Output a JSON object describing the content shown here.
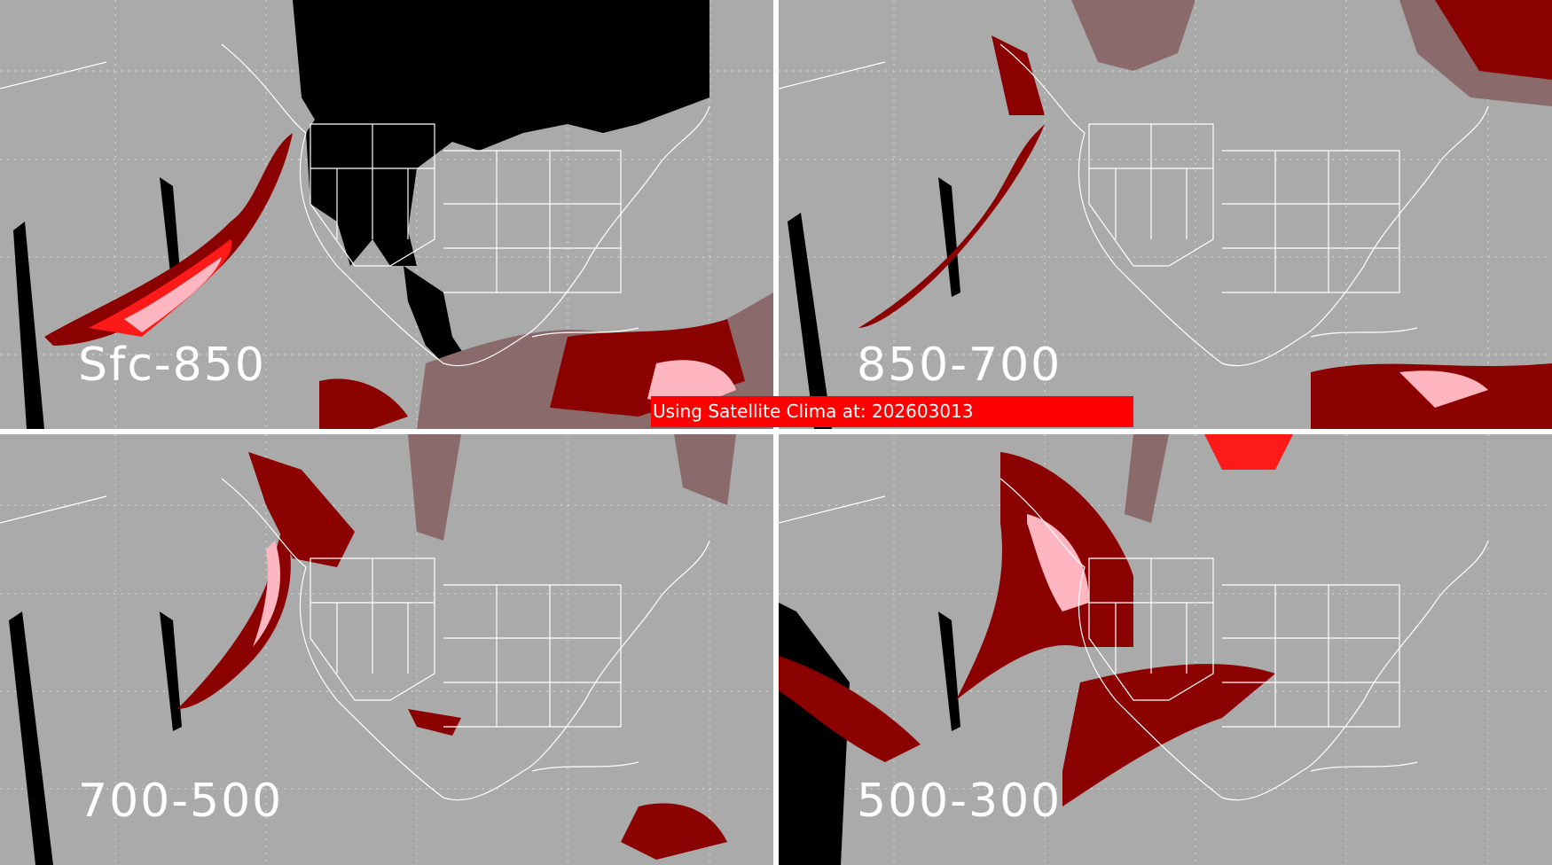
{
  "panels": [
    {
      "label": "Sfc-850"
    },
    {
      "label": "850-700"
    },
    {
      "label": "700-500"
    },
    {
      "label": "500-300"
    }
  ],
  "banner": {
    "text": "Using Satellite Clima at: 202603013"
  },
  "colors": {
    "background": "#aaaaaa",
    "no_data": "#000000",
    "low": "#8a6a6a",
    "medium": "#8b0000",
    "high": "#ff1a1a",
    "very_high": "#ffb6c1",
    "map_lines": "#ffffff",
    "banner": "#ff0000"
  }
}
